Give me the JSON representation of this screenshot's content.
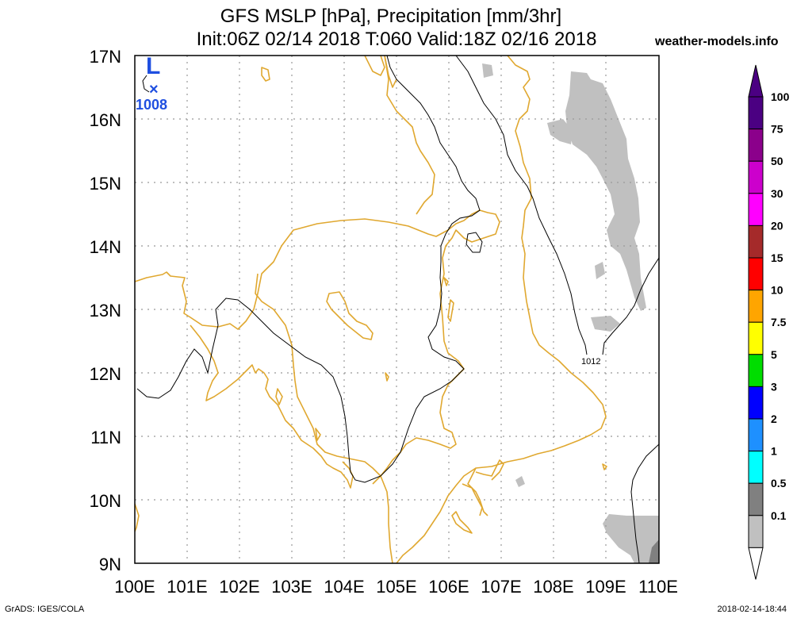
{
  "title_line1": "GFS MSLP [hPa], Precipitation [mm/3hr]",
  "title_line2": "Init:06Z 02/14 2018 T:060 Valid:18Z 02/16 2018",
  "site": "weather-models.info",
  "footer_left": "GrADS: IGES/COLA",
  "footer_right": "2018-02-14-18:44",
  "lat_labels": [
    "17N",
    "16N",
    "15N",
    "14N",
    "13N",
    "12N",
    "11N",
    "10N",
    "9N"
  ],
  "lon_labels": [
    "100E",
    "101E",
    "102E",
    "103E",
    "104E",
    "105E",
    "106E",
    "107E",
    "108E",
    "109E",
    "110E"
  ],
  "low_center": {
    "letter": "L",
    "marker": "×",
    "value": "1008"
  },
  "isobar_label": "1012",
  "colorbar": [
    {
      "label": "100",
      "color": "#4b0082"
    },
    {
      "label": "75",
      "color": "#8b008b"
    },
    {
      "label": "50",
      "color": "#cc00cc"
    },
    {
      "label": "30",
      "color": "#ff00ff"
    },
    {
      "label": "20",
      "color": "#a52a2a"
    },
    {
      "label": "15",
      "color": "#ff0000"
    },
    {
      "label": "10",
      "color": "#ffa500"
    },
    {
      "label": "7.5",
      "color": "#ffff00"
    },
    {
      "label": "5",
      "color": "#00dd00"
    },
    {
      "label": "3",
      "color": "#0000ff"
    },
    {
      "label": "2",
      "color": "#1e90ff"
    },
    {
      "label": "1",
      "color": "#00ffff"
    },
    {
      "label": "0.5",
      "color": "#808080"
    },
    {
      "label": "0.1",
      "color": "#c0c0c0"
    }
  ],
  "colors": {
    "coast": "#e0a830",
    "precip": "#c0c0c0",
    "isobar": "#000000",
    "low": "#1f4fe0",
    "grid": "#999999"
  }
}
